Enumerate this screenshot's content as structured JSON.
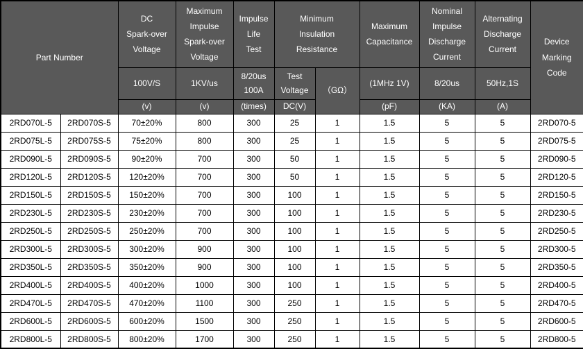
{
  "colors": {
    "header_bg": "#595959",
    "header_text": "#ffffff",
    "border": "#000000",
    "body_bg": "#ffffff",
    "body_text": "#000000"
  },
  "table": {
    "columns": [
      {
        "title": "Part Number"
      },
      {
        "title": "DC\nSpark-over\nVoltage",
        "condition": "100V/S",
        "unit": "(v)"
      },
      {
        "title": "Maximum\nImpulse\nSpark-over\nVoltage",
        "condition": "1KV/us",
        "unit": "(v)"
      },
      {
        "title": "Impulse\nLife\nTest",
        "condition": "8/20us\n100A",
        "unit": "(times)"
      },
      {
        "title": "Minimum\nInsulation\nResistance",
        "sub_condition_1": "Test\nVoltage",
        "sub_unit_1": "DC(V)",
        "sub_condition_2": "（GΩ）"
      },
      {
        "title": "Maximum\nCapacitance",
        "condition": "(1MHz 1V)",
        "unit": "(pF)"
      },
      {
        "title": "Nominal\nImpulse\nDischarge\nCurrent",
        "condition": "8/20us",
        "unit": "(KA)"
      },
      {
        "title": "Alternating\nDischarge\nCurrent",
        "condition": "50Hz,1S",
        "unit": "(A)"
      },
      {
        "title": "Device\nMarking\nCode"
      }
    ],
    "rows": [
      [
        "2RD070L-5",
        "2RD070S-5",
        "70±20%",
        "800",
        "300",
        "25",
        "1",
        "1.5",
        "5",
        "5",
        "2RD070-5"
      ],
      [
        "2RD075L-5",
        "2RD075S-5",
        "75±20%",
        "800",
        "300",
        "25",
        "1",
        "1.5",
        "5",
        "5",
        "2RD075-5"
      ],
      [
        "2RD090L-5",
        "2RD090S-5",
        "90±20%",
        "700",
        "300",
        "50",
        "1",
        "1.5",
        "5",
        "5",
        "2RD090-5"
      ],
      [
        "2RD120L-5",
        "2RD120S-5",
        "120±20%",
        "700",
        "300",
        "50",
        "1",
        "1.5",
        "5",
        "5",
        "2RD120-5"
      ],
      [
        "2RD150L-5",
        "2RD150S-5",
        "150±20%",
        "700",
        "300",
        "100",
        "1",
        "1.5",
        "5",
        "5",
        "2RD150-5"
      ],
      [
        "2RD230L-5",
        "2RD230S-5",
        "230±20%",
        "700",
        "300",
        "100",
        "1",
        "1.5",
        "5",
        "5",
        "2RD230-5"
      ],
      [
        "2RD250L-5",
        "2RD250S-5",
        "250±20%",
        "700",
        "300",
        "100",
        "1",
        "1.5",
        "5",
        "5",
        "2RD250-5"
      ],
      [
        "2RD300L-5",
        "2RD300S-5",
        "300±20%",
        "900",
        "300",
        "100",
        "1",
        "1.5",
        "5",
        "5",
        "2RD300-5"
      ],
      [
        "2RD350L-5",
        "2RD350S-5",
        "350±20%",
        "900",
        "300",
        "100",
        "1",
        "1.5",
        "5",
        "5",
        "2RD350-5"
      ],
      [
        "2RD400L-5",
        "2RD400S-5",
        "400±20%",
        "1000",
        "300",
        "100",
        "1",
        "1.5",
        "5",
        "5",
        "2RD400-5"
      ],
      [
        "2RD470L-5",
        "2RD470S-5",
        "470±20%",
        "1100",
        "300",
        "250",
        "1",
        "1.5",
        "5",
        "5",
        "2RD470-5"
      ],
      [
        "2RD600L-5",
        "2RD600S-5",
        "600±20%",
        "1500",
        "300",
        "250",
        "1",
        "1.5",
        "5",
        "5",
        "2RD600-5"
      ],
      [
        "2RD800L-5",
        "2RD800S-5",
        "800±20%",
        "1700",
        "300",
        "250",
        "1",
        "1.5",
        "5",
        "5",
        "2RD800-5"
      ]
    ]
  }
}
